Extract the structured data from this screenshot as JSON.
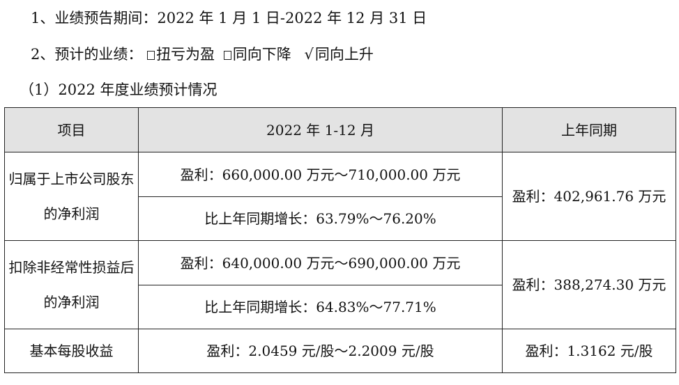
{
  "para1": {
    "label": "1、业绩预告期间：",
    "value": "2022 年 1 月 1 日-2022 年 12 月 31 日"
  },
  "para2": {
    "label": "2、预计的业绩：",
    "options": [
      {
        "label": "扭亏为盈",
        "checked": false
      },
      {
        "label": "同向下降",
        "checked": false
      },
      {
        "label": "同向上升",
        "checked": true
      }
    ],
    "check_mark": "√"
  },
  "para3": {
    "text": "（1）2022 年度业绩预计情况"
  },
  "table": {
    "headers": [
      "项目",
      "2022 年 1-12 月",
      "上年同期"
    ],
    "rows": [
      {
        "item": "归属于上市公司股东的净利润",
        "current_profit": "盈利：660,000.00 万元～710,000.00 万元",
        "current_growth": "比上年同期增长：63.79%～76.20%",
        "prior": "盈利：402,961.76 万元"
      },
      {
        "item": "扣除非经常性损益后的净利润",
        "current_profit": "盈利：640,000.00 万元～690,000.00 万元",
        "current_growth": "比上年同期增长：64.83%～77.71%",
        "prior": "盈利：388,274.30 万元"
      },
      {
        "item": "基本每股收益",
        "current_profit": "盈利：2.0459 元/股～2.2009 元/股",
        "prior": "盈利：1.3162 元/股"
      }
    ]
  }
}
